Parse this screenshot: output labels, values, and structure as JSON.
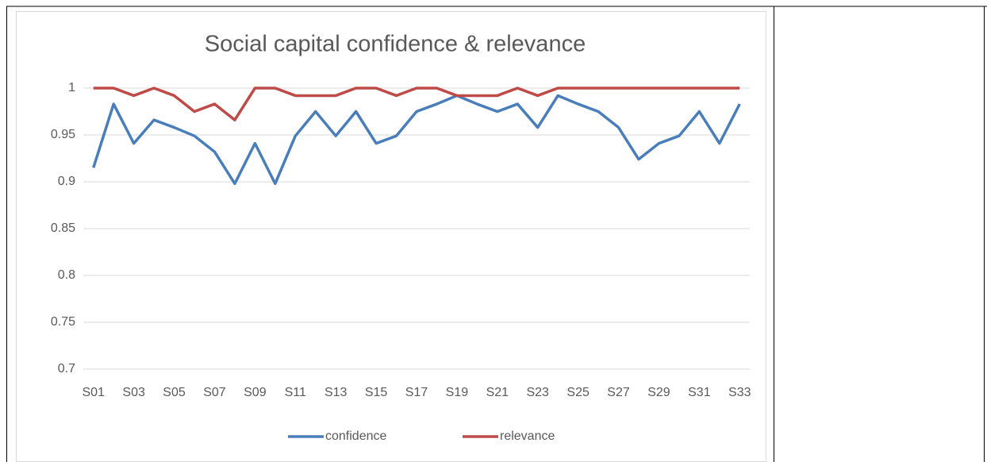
{
  "chart_data": {
    "type": "line",
    "title": "Social capital confidence & relevance",
    "categories": [
      "S01",
      null,
      "S03",
      null,
      "S05",
      null,
      "S07",
      null,
      "S09",
      null,
      "S11",
      null,
      "S13",
      null,
      "S15",
      null,
      "S17",
      null,
      "S19",
      null,
      "S21",
      null,
      "S23",
      null,
      "S25",
      null,
      "S27",
      null,
      "S29",
      null,
      "S31",
      null,
      "S33"
    ],
    "series": [
      {
        "name": "confidence",
        "color": "#4a7ebb",
        "values": [
          0.915,
          0.983,
          0.941,
          0.966,
          0.958,
          0.949,
          0.932,
          0.898,
          0.941,
          0.898,
          0.949,
          0.975,
          0.949,
          0.975,
          0.941,
          0.949,
          0.975,
          0.983,
          0.992,
          0.983,
          0.975,
          0.983,
          0.958,
          0.992,
          0.983,
          0.975,
          0.958,
          0.924,
          0.941,
          0.949,
          0.975,
          0.941,
          0.983
        ]
      },
      {
        "name": "relevance",
        "color": "#be4b48",
        "values": [
          1,
          1,
          0.992,
          1,
          0.992,
          0.975,
          0.983,
          0.966,
          1,
          1,
          0.992,
          0.992,
          0.992,
          1,
          1,
          0.992,
          1,
          1,
          0.992,
          0.992,
          0.992,
          1,
          0.992,
          1,
          1,
          1,
          1,
          1,
          1,
          1,
          1,
          1,
          1
        ]
      }
    ],
    "ylim": [
      0.7,
      1
    ],
    "yticks": [
      0.7,
      0.75,
      0.8,
      0.85,
      0.9,
      0.95,
      1
    ],
    "grid": true,
    "legend": "bottom"
  }
}
